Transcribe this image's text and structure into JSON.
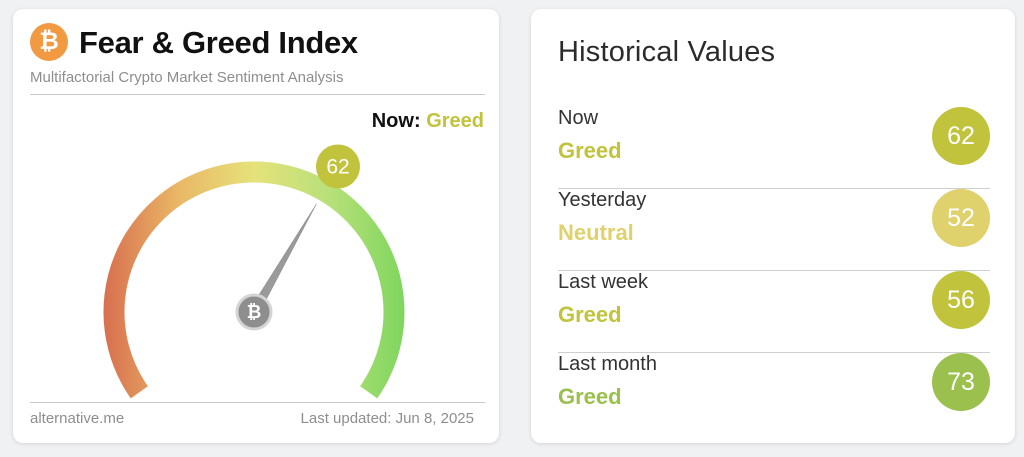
{
  "left": {
    "logo_glyph": "₿",
    "logo_color": "#f29a42",
    "title": "Fear & Greed Index",
    "subtitle": "Multifactorial Crypto Market Sentiment Analysis",
    "now_label": "Now:",
    "now_value": "Greed",
    "gauge": {
      "value": 62,
      "value_label": "62",
      "min": 0,
      "max": 100,
      "badge_color": "#c1c33c",
      "center_glyph": "₿"
    },
    "footer_left": "alternative.me",
    "footer_right": "Last updated: Jun 8, 2025"
  },
  "historical": {
    "title": "Historical Values",
    "rows": [
      {
        "period": "Now",
        "classification": "Greed",
        "value": "62",
        "color": "#c1c33c"
      },
      {
        "period": "Yesterday",
        "classification": "Neutral",
        "value": "52",
        "color": "#dfd16b"
      },
      {
        "period": "Last week",
        "classification": "Greed",
        "value": "56",
        "color": "#c1c33c"
      },
      {
        "period": "Last month",
        "classification": "Greed",
        "value": "73",
        "color": "#9bc04e"
      }
    ]
  }
}
